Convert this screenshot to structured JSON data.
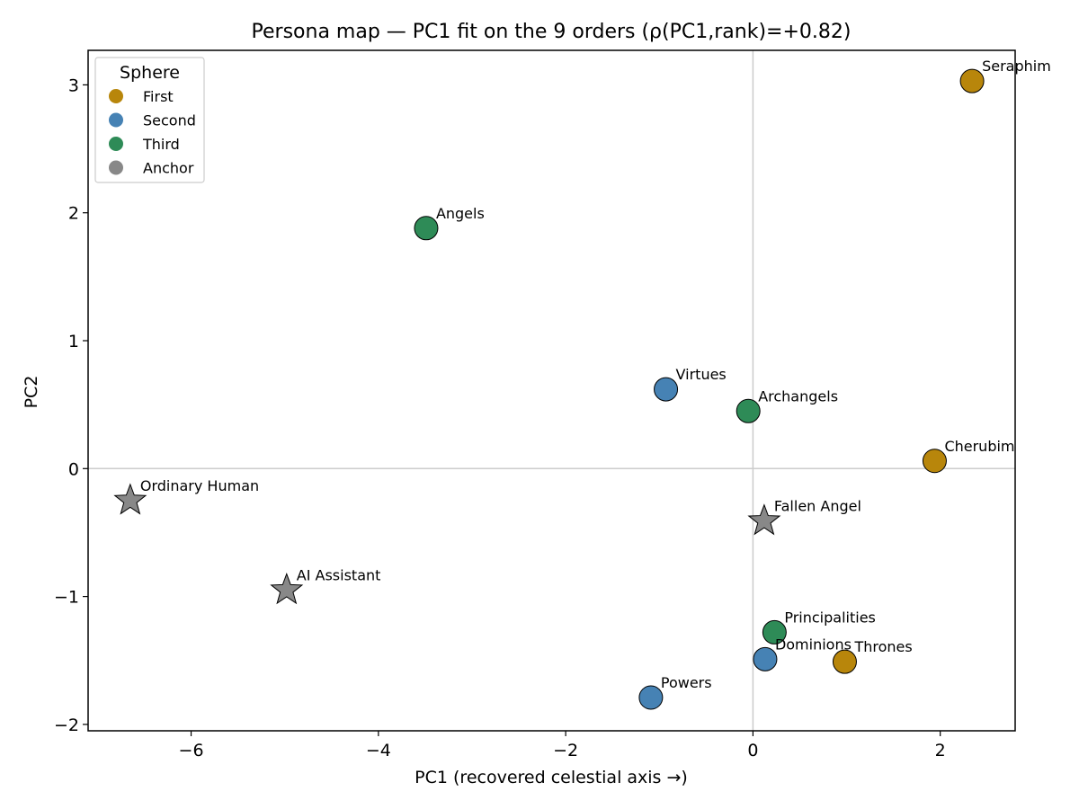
{
  "chart_data": {
    "type": "scatter",
    "title": "Persona map — PC1 fit on the 9 orders (ρ(PC1,rank)=+0.82)",
    "xlabel": "PC1  (recovered celestial axis →)",
    "ylabel": "PC2",
    "xlim": [
      -7.1,
      2.8
    ],
    "ylim": [
      -2.05,
      3.27
    ],
    "xticks": [
      -6,
      -4,
      -2,
      0,
      2
    ],
    "yticks": [
      -2,
      -1,
      0,
      1,
      2,
      3
    ],
    "tick_labels_x": [
      "−6",
      "−4",
      "−2",
      "0",
      "2"
    ],
    "tick_labels_y": [
      "−2",
      "−1",
      "0",
      "1",
      "2",
      "3"
    ],
    "grid": false,
    "reference_lines": {
      "x0": true,
      "y0": true,
      "color": "#cccccc"
    },
    "legend": {
      "title": "Sphere",
      "placement": "top-left",
      "entries": [
        {
          "name": "First",
          "color": "#B8860B"
        },
        {
          "name": "Second",
          "color": "#4682B4"
        },
        {
          "name": "Third",
          "color": "#2E8B57"
        },
        {
          "name": "Anchor",
          "color": "#888888"
        }
      ]
    },
    "points": [
      {
        "label": "Seraphim",
        "x": 2.34,
        "y": 3.03,
        "sphere": "First",
        "marker": "circle"
      },
      {
        "label": "Cherubim",
        "x": 1.94,
        "y": 0.06,
        "sphere": "First",
        "marker": "circle"
      },
      {
        "label": "Thrones",
        "x": 0.98,
        "y": -1.51,
        "sphere": "First",
        "marker": "circle"
      },
      {
        "label": "Virtues",
        "x": -0.93,
        "y": 0.62,
        "sphere": "Second",
        "marker": "circle"
      },
      {
        "label": "Dominions",
        "x": 0.13,
        "y": -1.49,
        "sphere": "Second",
        "marker": "circle"
      },
      {
        "label": "Powers",
        "x": -1.09,
        "y": -1.79,
        "sphere": "Second",
        "marker": "circle"
      },
      {
        "label": "Angels",
        "x": -3.49,
        "y": 1.88,
        "sphere": "Third",
        "marker": "circle"
      },
      {
        "label": "Archangels",
        "x": -0.05,
        "y": 0.45,
        "sphere": "Third",
        "marker": "circle"
      },
      {
        "label": "Principalities",
        "x": 0.23,
        "y": -1.28,
        "sphere": "Third",
        "marker": "circle"
      },
      {
        "label": "Ordinary Human",
        "x": -6.65,
        "y": -0.25,
        "sphere": "Anchor",
        "marker": "star"
      },
      {
        "label": "AI Assistant",
        "x": -4.98,
        "y": -0.95,
        "sphere": "Anchor",
        "marker": "star"
      },
      {
        "label": "Fallen Angel",
        "x": 0.12,
        "y": -0.41,
        "sphere": "Anchor",
        "marker": "star"
      }
    ]
  }
}
